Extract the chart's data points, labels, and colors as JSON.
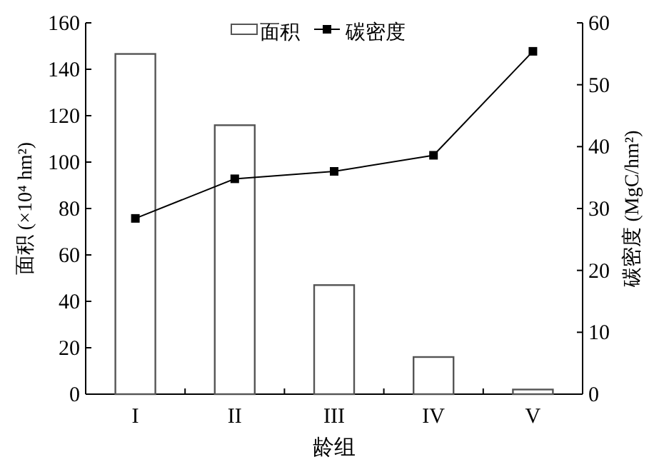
{
  "chart_data": {
    "type": "bar",
    "categories": [
      "I",
      "II",
      "III",
      "IV",
      "V"
    ],
    "xlabel": "龄组",
    "ylabel": "面积 (×10⁴ hm²)",
    "y2label": "碳密度 (MgC/hm²)",
    "ylim": [
      0,
      160
    ],
    "yticks": [
      0,
      20,
      40,
      60,
      80,
      100,
      120,
      140,
      160
    ],
    "y2lim": [
      0,
      60
    ],
    "y2ticks": [
      0,
      10,
      20,
      30,
      40,
      50,
      60
    ],
    "legend": "top",
    "grid": false,
    "series": [
      {
        "name": "面积",
        "color": "#ffffff",
        "values": [
          146.6,
          115.9,
          47,
          16,
          2
        ]
      },
      {
        "name": "碳密度",
        "type": "line",
        "axis": "y2",
        "color": "#000000",
        "marker": "square",
        "values": [
          28.4,
          34.8,
          36.0,
          38.6,
          55.4
        ]
      }
    ]
  }
}
